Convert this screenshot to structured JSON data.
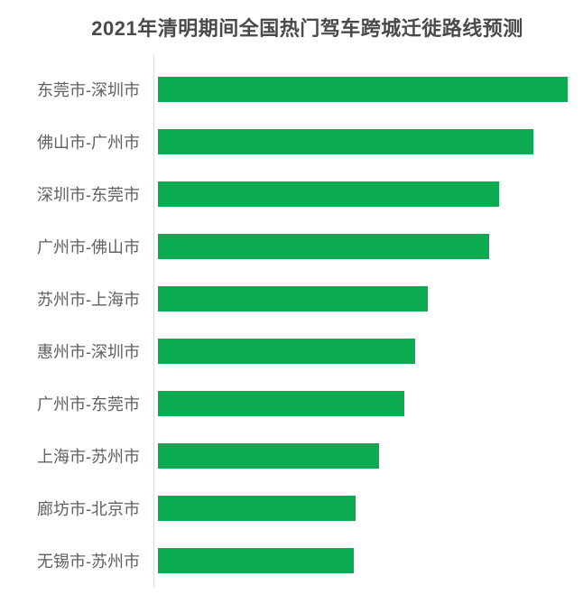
{
  "colors": {
    "bar": "#0cab51",
    "title_text": "#4a4a4a",
    "label_text": "#606060",
    "axis_line": "#dddddd",
    "background": "#ffffff"
  },
  "chart_data": {
    "type": "bar",
    "orientation": "horizontal",
    "title": "2021年清明期间全国热门驾车跨城迁徙路线预测",
    "categories": [
      "东莞市-深圳市",
      "佛山市-广州市",
      "深圳市-东莞市",
      "广州市-佛山市",
      "苏州市-上海市",
      "惠州市-深圳市",
      "广州市-东莞市",
      "上海市-苏州市",
      "廊坊市-北京市",
      "无锡市-苏州市"
    ],
    "values": [
      100,
      91.6,
      83.3,
      80.8,
      65.9,
      62.8,
      60.1,
      54.0,
      48.2,
      47.8
    ],
    "value_note": "relative bar lengths (max route = 100); no numeric axis labels shown in chart",
    "xlim": [
      0,
      100
    ],
    "xlabel": "",
    "ylabel": "",
    "legend": "none",
    "grid": false,
    "bar_color": "#0cab51"
  }
}
